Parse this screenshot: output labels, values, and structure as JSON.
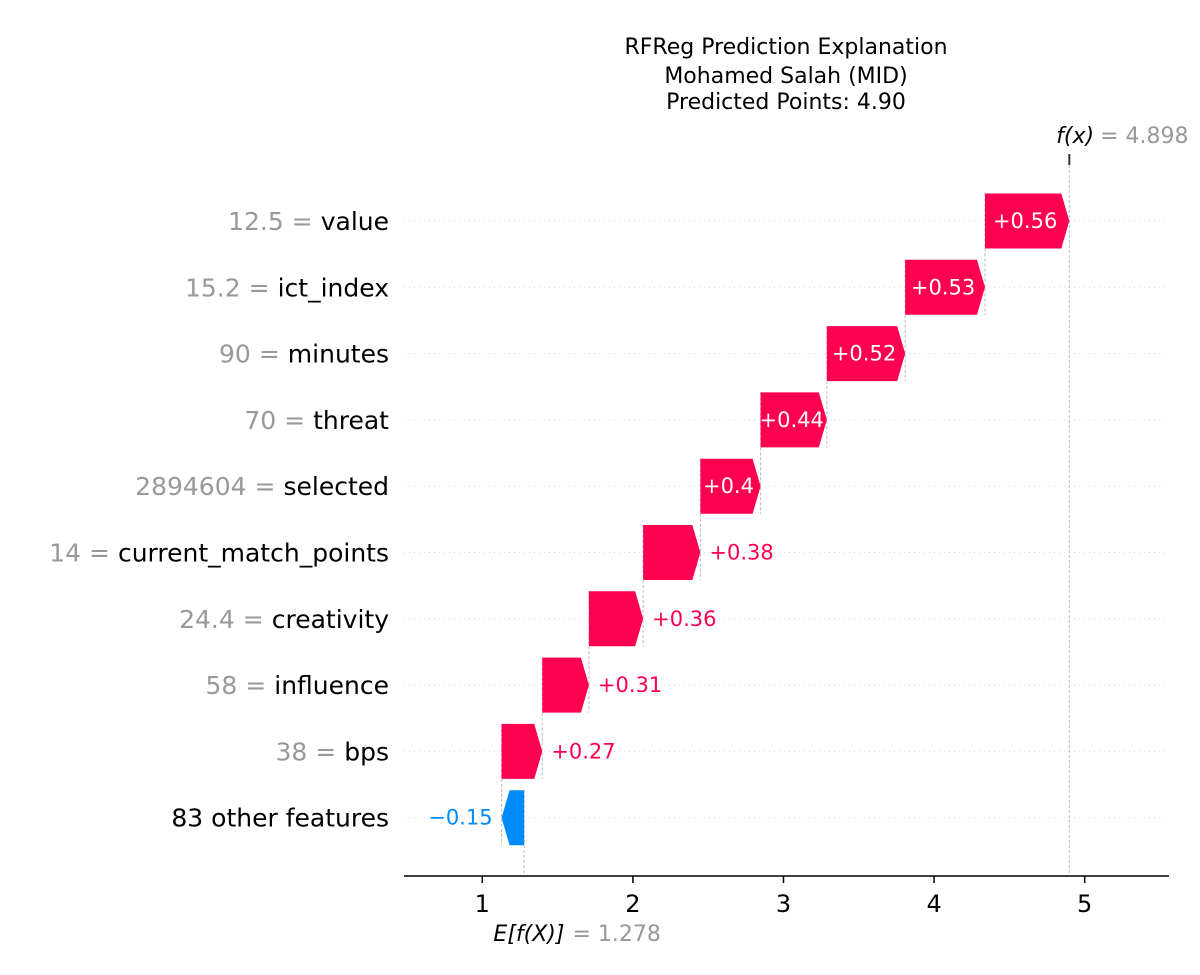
{
  "chart_data": {
    "type": "waterfall",
    "title_lines": [
      "RFReg Prediction Explanation",
      "Mohamed Salah (MID)",
      "Predicted Points: 4.90"
    ],
    "base_value": 1.278,
    "base_label": "E[f(X)]",
    "base_value_text": "= 1.278",
    "output_value": 4.898,
    "output_label": "f(x)",
    "output_value_text": "= 4.898",
    "xlim": [
      0.48,
      5.56
    ],
    "xticks": [
      1,
      2,
      3,
      4,
      5
    ],
    "xtick_labels": [
      "1",
      "2",
      "3",
      "4",
      "5"
    ],
    "colors": {
      "positive": "#ff0051",
      "negative": "#008bfb",
      "muted": "#999999"
    },
    "features": [
      {
        "value_text": "12.5",
        "eq": "=",
        "name": "value",
        "start": 4.338,
        "end": 4.898,
        "label": "+0.56"
      },
      {
        "value_text": "15.2",
        "eq": "=",
        "name": "ict_index",
        "start": 3.808,
        "end": 4.338,
        "label": "+0.53"
      },
      {
        "value_text": "90",
        "eq": "=",
        "name": "minutes",
        "start": 3.288,
        "end": 3.808,
        "label": "+0.52"
      },
      {
        "value_text": "70",
        "eq": "=",
        "name": "threat",
        "start": 2.848,
        "end": 3.288,
        "label": "+0.44"
      },
      {
        "value_text": "2894604",
        "eq": "=",
        "name": "selected",
        "start": 2.448,
        "end": 2.848,
        "label": "+0.4"
      },
      {
        "value_text": "14",
        "eq": "=",
        "name": "current_match_points",
        "start": 2.068,
        "end": 2.448,
        "label": "+0.38"
      },
      {
        "value_text": "24.4",
        "eq": "=",
        "name": "creativity",
        "start": 1.708,
        "end": 2.068,
        "label": "+0.36"
      },
      {
        "value_text": "58",
        "eq": "=",
        "name": "influence",
        "start": 1.398,
        "end": 1.708,
        "label": "+0.31"
      },
      {
        "value_text": "38",
        "eq": "=",
        "name": "bps",
        "start": 1.128,
        "end": 1.398,
        "label": "+0.27"
      },
      {
        "value_text": "",
        "eq": "",
        "name": "83 other features",
        "start": 1.278,
        "end": 1.128,
        "label": "−0.15"
      }
    ]
  }
}
